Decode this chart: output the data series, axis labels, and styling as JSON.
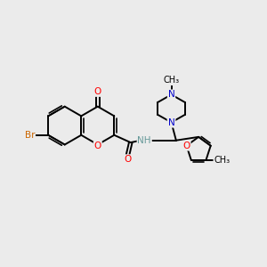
{
  "background_color": "#ebebeb",
  "bond_color": "#000000",
  "oxygen_color": "#ff0000",
  "nitrogen_color": "#0000cc",
  "bromine_color": "#cc6600",
  "nh_color": "#669999",
  "figsize": [
    3.0,
    3.0
  ],
  "dpi": 100,
  "xlim": [
    0,
    10
  ],
  "ylim": [
    0,
    10
  ]
}
